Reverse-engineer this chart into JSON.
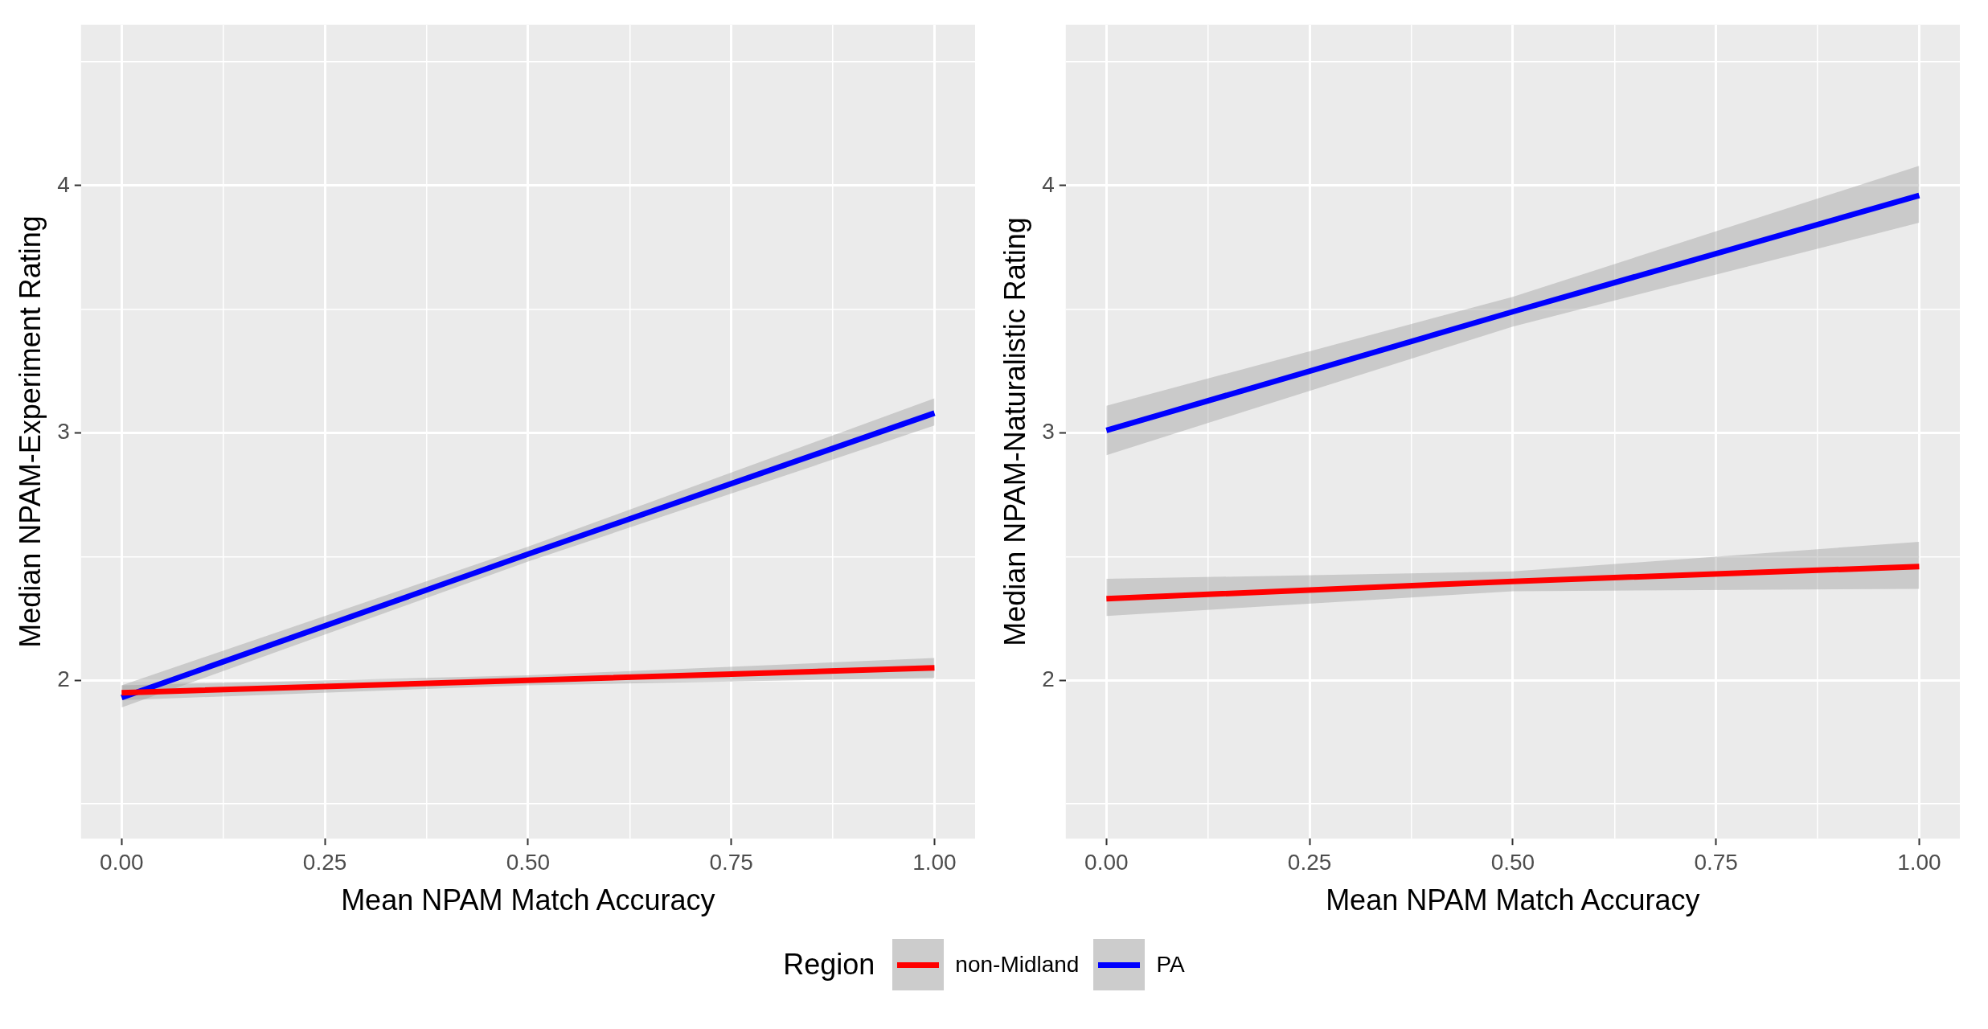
{
  "chart_data": [
    {
      "type": "line",
      "xlabel": "Mean NPAM Match Accuracy",
      "ylabel": "Median NPAM-Experiment Rating",
      "legend": "bottom",
      "legend_title": "Region",
      "grid": true,
      "marker": "none",
      "line_style": "solid",
      "xlim": [
        -0.05,
        1.05
      ],
      "ylim": [
        1.36,
        4.65
      ],
      "xticks": [
        {
          "value": 0,
          "label": "0.00"
        },
        {
          "value": 0.125,
          "label": null
        },
        {
          "value": 0.25,
          "label": "0.25"
        },
        {
          "value": 0.375,
          "label": null
        },
        {
          "value": 0.5,
          "label": "0.50"
        },
        {
          "value": 0.625,
          "label": null
        },
        {
          "value": 0.75,
          "label": "0.75"
        },
        {
          "value": 0.875,
          "label": null
        },
        {
          "value": 1,
          "label": "1.00"
        }
      ],
      "yticks": [
        {
          "value": 1.5,
          "label": null
        },
        2,
        {
          "value": 2.5,
          "label": null
        },
        3,
        {
          "value": 3.5,
          "label": null
        },
        4,
        {
          "value": 4.5,
          "label": null
        }
      ],
      "series": [
        {
          "name": "non-Midland",
          "color": "#ff0000",
          "x": [
            0,
            0.5,
            1
          ],
          "values": [
            1.95,
            2.0,
            2.05
          ],
          "lower": [
            1.92,
            1.98,
            2.01
          ],
          "upper": [
            1.98,
            2.02,
            2.09
          ]
        },
        {
          "name": "PA",
          "color": "#0000ff",
          "x": [
            0,
            0.5,
            1
          ],
          "values": [
            1.93,
            2.51,
            3.08
          ],
          "lower": [
            1.89,
            2.48,
            3.03
          ],
          "upper": [
            1.98,
            2.54,
            3.14
          ]
        }
      ]
    },
    {
      "type": "line",
      "xlabel": "Mean NPAM Match Accuracy",
      "ylabel": "Median NPAM-Naturalistic Rating",
      "legend": "bottom",
      "grid": true,
      "marker": "none",
      "line_style": "solid",
      "xlim": [
        -0.05,
        1.05
      ],
      "ylim": [
        1.36,
        4.65
      ],
      "xticks": [
        {
          "value": 0,
          "label": "0.00"
        },
        {
          "value": 0.125,
          "label": null
        },
        {
          "value": 0.25,
          "label": "0.25"
        },
        {
          "value": 0.375,
          "label": null
        },
        {
          "value": 0.5,
          "label": "0.50"
        },
        {
          "value": 0.625,
          "label": null
        },
        {
          "value": 0.75,
          "label": "0.75"
        },
        {
          "value": 0.875,
          "label": null
        },
        {
          "value": 1,
          "label": "1.00"
        }
      ],
      "yticks": [
        {
          "value": 1.5,
          "label": null
        },
        2,
        {
          "value": 2.5,
          "label": null
        },
        3,
        {
          "value": 3.5,
          "label": null
        },
        4,
        {
          "value": 4.5,
          "label": null
        }
      ],
      "series": [
        {
          "name": "non-Midland",
          "color": "#ff0000",
          "x": [
            0,
            0.5,
            1
          ],
          "values": [
            2.33,
            2.4,
            2.46
          ],
          "lower": [
            2.26,
            2.36,
            2.37
          ],
          "upper": [
            2.41,
            2.44,
            2.56
          ]
        },
        {
          "name": "PA",
          "color": "#0000ff",
          "x": [
            0,
            0.5,
            1
          ],
          "values": [
            3.01,
            3.49,
            3.96
          ],
          "lower": [
            2.91,
            3.43,
            3.85
          ],
          "upper": [
            3.11,
            3.55,
            4.08
          ]
        }
      ]
    }
  ]
}
